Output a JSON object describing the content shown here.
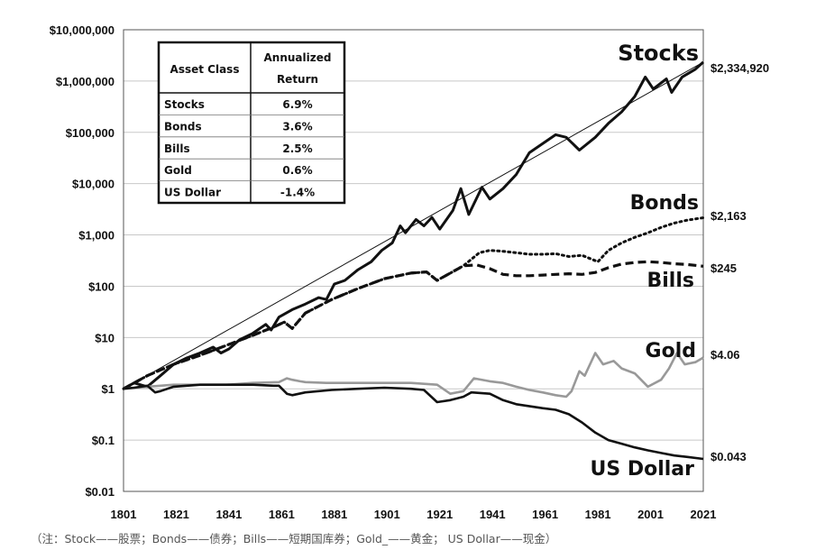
{
  "chart_data": {
    "type": "line",
    "y_scale": "log",
    "ylim": [
      0.01,
      10000000
    ],
    "xlim": [
      1801,
      2021
    ],
    "x_ticks": [
      "1801",
      "1821",
      "1841",
      "1861",
      "1881",
      "1901",
      "1921",
      "1941",
      "1961",
      "1981",
      "2001",
      "2021"
    ],
    "y_ticks": [
      {
        "value": 10000000,
        "label": "$10,000,000"
      },
      {
        "value": 1000000,
        "label": "$1,000,000"
      },
      {
        "value": 100000,
        "label": "$100,000"
      },
      {
        "value": 10000,
        "label": "$10,000"
      },
      {
        "value": 1000,
        "label": "$1,000"
      },
      {
        "value": 100,
        "label": "$100"
      },
      {
        "value": 10,
        "label": "$10"
      },
      {
        "value": 1,
        "label": "$1"
      },
      {
        "value": 0.1,
        "label": "$0.1"
      },
      {
        "value": 0.01,
        "label": "$0.01"
      }
    ],
    "series": [
      {
        "name": "Stocks",
        "end_label": "$2,334,920",
        "color": "#111111",
        "style": "solid-thick",
        "points": [
          [
            1801,
            1
          ],
          [
            1805,
            1.3
          ],
          [
            1810,
            1.1
          ],
          [
            1815,
            1.8
          ],
          [
            1820,
            3
          ],
          [
            1825,
            4
          ],
          [
            1830,
            5
          ],
          [
            1835,
            6.5
          ],
          [
            1838,
            5
          ],
          [
            1841,
            6
          ],
          [
            1845,
            9
          ],
          [
            1850,
            12
          ],
          [
            1855,
            18
          ],
          [
            1857,
            14
          ],
          [
            1860,
            25
          ],
          [
            1865,
            35
          ],
          [
            1870,
            45
          ],
          [
            1875,
            60
          ],
          [
            1878,
            55
          ],
          [
            1881,
            110
          ],
          [
            1885,
            130
          ],
          [
            1890,
            210
          ],
          [
            1895,
            300
          ],
          [
            1899,
            500
          ],
          [
            1903,
            700
          ],
          [
            1906,
            1500
          ],
          [
            1908,
            1100
          ],
          [
            1912,
            2000
          ],
          [
            1915,
            1500
          ],
          [
            1918,
            2200
          ],
          [
            1921,
            1300
          ],
          [
            1926,
            3000
          ],
          [
            1929,
            8000
          ],
          [
            1932,
            2500
          ],
          [
            1937,
            8500
          ],
          [
            1940,
            5000
          ],
          [
            1945,
            8000
          ],
          [
            1950,
            15000
          ],
          [
            1955,
            40000
          ],
          [
            1960,
            60000
          ],
          [
            1965,
            90000
          ],
          [
            1969,
            80000
          ],
          [
            1974,
            45000
          ],
          [
            1980,
            80000
          ],
          [
            1985,
            150000
          ],
          [
            1990,
            250000
          ],
          [
            1995,
            500000
          ],
          [
            1999,
            1200000
          ],
          [
            2002,
            700000
          ],
          [
            2007,
            1100000
          ],
          [
            2009,
            600000
          ],
          [
            2013,
            1200000
          ],
          [
            2018,
            1700000
          ],
          [
            2021,
            2334920
          ]
        ]
      },
      {
        "name": "Bonds",
        "end_label": "$2,163",
        "color": "#111111",
        "style": "dotted",
        "points": [
          [
            1801,
            1
          ],
          [
            1810,
            1.8
          ],
          [
            1820,
            3
          ],
          [
            1830,
            4.5
          ],
          [
            1840,
            7
          ],
          [
            1850,
            11
          ],
          [
            1858,
            16
          ],
          [
            1862,
            20
          ],
          [
            1865,
            15
          ],
          [
            1870,
            30
          ],
          [
            1880,
            55
          ],
          [
            1890,
            90
          ],
          [
            1900,
            140
          ],
          [
            1910,
            180
          ],
          [
            1916,
            190
          ],
          [
            1920,
            130
          ],
          [
            1925,
            180
          ],
          [
            1930,
            250
          ],
          [
            1936,
            450
          ],
          [
            1940,
            500
          ],
          [
            1945,
            480
          ],
          [
            1950,
            450
          ],
          [
            1955,
            420
          ],
          [
            1960,
            420
          ],
          [
            1965,
            430
          ],
          [
            1970,
            380
          ],
          [
            1975,
            400
          ],
          [
            1981,
            300
          ],
          [
            1985,
            500
          ],
          [
            1990,
            700
          ],
          [
            1995,
            900
          ],
          [
            2000,
            1100
          ],
          [
            2005,
            1400
          ],
          [
            2010,
            1700
          ],
          [
            2015,
            1950
          ],
          [
            2021,
            2163
          ]
        ]
      },
      {
        "name": "Bills",
        "end_label": "$245",
        "color": "#111111",
        "style": "dashed",
        "points": [
          [
            1801,
            1
          ],
          [
            1810,
            1.8
          ],
          [
            1820,
            3
          ],
          [
            1830,
            4.5
          ],
          [
            1840,
            7
          ],
          [
            1850,
            11
          ],
          [
            1858,
            16
          ],
          [
            1862,
            20
          ],
          [
            1865,
            15
          ],
          [
            1870,
            30
          ],
          [
            1880,
            55
          ],
          [
            1890,
            90
          ],
          [
            1900,
            140
          ],
          [
            1910,
            180
          ],
          [
            1916,
            190
          ],
          [
            1920,
            130
          ],
          [
            1925,
            180
          ],
          [
            1930,
            250
          ],
          [
            1935,
            260
          ],
          [
            1940,
            220
          ],
          [
            1945,
            170
          ],
          [
            1950,
            160
          ],
          [
            1955,
            160
          ],
          [
            1960,
            165
          ],
          [
            1965,
            170
          ],
          [
            1970,
            175
          ],
          [
            1975,
            170
          ],
          [
            1980,
            185
          ],
          [
            1985,
            230
          ],
          [
            1990,
            270
          ],
          [
            1995,
            290
          ],
          [
            2000,
            300
          ],
          [
            2005,
            290
          ],
          [
            2010,
            275
          ],
          [
            2015,
            265
          ],
          [
            2021,
            245
          ]
        ]
      },
      {
        "name": "Gold",
        "end_label": "$4.06",
        "color": "#999999",
        "style": "solid",
        "points": [
          [
            1801,
            1
          ],
          [
            1810,
            1.1
          ],
          [
            1820,
            1.2
          ],
          [
            1830,
            1.2
          ],
          [
            1840,
            1.2
          ],
          [
            1850,
            1.3
          ],
          [
            1860,
            1.35
          ],
          [
            1863,
            1.6
          ],
          [
            1865,
            1.5
          ],
          [
            1868,
            1.4
          ],
          [
            1870,
            1.35
          ],
          [
            1878,
            1.3
          ],
          [
            1880,
            1.3
          ],
          [
            1890,
            1.3
          ],
          [
            1900,
            1.3
          ],
          [
            1910,
            1.3
          ],
          [
            1920,
            1.2
          ],
          [
            1925,
            0.8
          ],
          [
            1930,
            0.9
          ],
          [
            1934,
            1.6
          ],
          [
            1940,
            1.4
          ],
          [
            1945,
            1.3
          ],
          [
            1950,
            1.1
          ],
          [
            1955,
            0.95
          ],
          [
            1960,
            0.85
          ],
          [
            1965,
            0.75
          ],
          [
            1969,
            0.7
          ],
          [
            1971,
            0.9
          ],
          [
            1974,
            2.2
          ],
          [
            1976,
            1.8
          ],
          [
            1980,
            5
          ],
          [
            1983,
            3
          ],
          [
            1987,
            3.5
          ],
          [
            1990,
            2.5
          ],
          [
            1995,
            2
          ],
          [
            2000,
            1.1
          ],
          [
            2005,
            1.5
          ],
          [
            2008,
            2.5
          ],
          [
            2011,
            5
          ],
          [
            2014,
            3
          ],
          [
            2018,
            3.3
          ],
          [
            2021,
            4.06
          ]
        ]
      },
      {
        "name": "US Dollar",
        "end_label": "$0.043",
        "color": "#111111",
        "style": "solid",
        "points": [
          [
            1801,
            1
          ],
          [
            1805,
            1.05
          ],
          [
            1810,
            1.15
          ],
          [
            1813,
            0.85
          ],
          [
            1815,
            0.9
          ],
          [
            1820,
            1.1
          ],
          [
            1830,
            1.2
          ],
          [
            1840,
            1.2
          ],
          [
            1850,
            1.2
          ],
          [
            1858,
            1.15
          ],
          [
            1860,
            1.15
          ],
          [
            1863,
            0.8
          ],
          [
            1865,
            0.75
          ],
          [
            1870,
            0.85
          ],
          [
            1880,
            0.95
          ],
          [
            1890,
            1.0
          ],
          [
            1900,
            1.05
          ],
          [
            1910,
            1.0
          ],
          [
            1915,
            0.95
          ],
          [
            1920,
            0.55
          ],
          [
            1925,
            0.6
          ],
          [
            1930,
            0.7
          ],
          [
            1933,
            0.85
          ],
          [
            1940,
            0.8
          ],
          [
            1945,
            0.6
          ],
          [
            1950,
            0.5
          ],
          [
            1960,
            0.42
          ],
          [
            1965,
            0.39
          ],
          [
            1970,
            0.32
          ],
          [
            1975,
            0.22
          ],
          [
            1980,
            0.14
          ],
          [
            1985,
            0.1
          ],
          [
            1990,
            0.085
          ],
          [
            1995,
            0.072
          ],
          [
            2000,
            0.063
          ],
          [
            2005,
            0.056
          ],
          [
            2010,
            0.05
          ],
          [
            2015,
            0.047
          ],
          [
            2021,
            0.043
          ]
        ]
      },
      {
        "name": "Trend",
        "color": "#111111",
        "style": "thin",
        "points": [
          [
            1801,
            1
          ],
          [
            2021,
            2334920
          ]
        ]
      }
    ],
    "table": {
      "header": [
        "Asset Class",
        "Annualized",
        "Return"
      ],
      "rows": [
        [
          "Stocks",
          "6.9%"
        ],
        [
          "Bonds",
          "3.6%"
        ],
        [
          "Bills",
          "2.5%"
        ],
        [
          "Gold",
          "0.6%"
        ],
        [
          "US Dollar",
          "-1.4%"
        ]
      ]
    }
  },
  "footnote": "（注：Stock——股票；Bonds——债券；Bills——短期国库券；Gold_——黄金； US Dollar——现金）"
}
